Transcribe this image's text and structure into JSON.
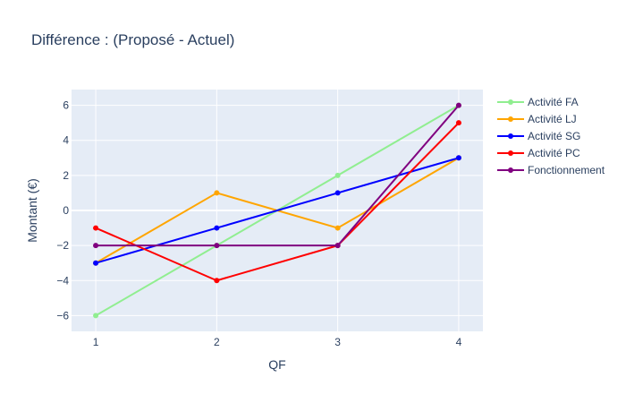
{
  "chart_data": {
    "type": "line",
    "title": "Différence : (Proposé - Actuel)",
    "xlabel": "QF",
    "ylabel": "Montant (€)",
    "x": [
      1,
      2,
      3,
      4
    ],
    "x_tick_labels": [
      "1",
      "2",
      "3",
      "4"
    ],
    "xlim": [
      0.8,
      4.2
    ],
    "ylim": [
      -6.9,
      6.9
    ],
    "y_ticks": [
      -6,
      -4,
      -2,
      0,
      2,
      4,
      6
    ],
    "y_tick_labels": [
      "−6",
      "−4",
      "−2",
      "0",
      "2",
      "4",
      "6"
    ],
    "grid": true,
    "plot_background": "#e5ecf6",
    "legend_position": "right",
    "series": [
      {
        "name": "Activité FA",
        "color": "#90ee90",
        "values": [
          -6,
          -2,
          2,
          6
        ]
      },
      {
        "name": "Activité LJ",
        "color": "#ffa500",
        "values": [
          -3,
          1,
          -1,
          3
        ]
      },
      {
        "name": "Activité SG",
        "color": "#0000ff",
        "values": [
          -3,
          -1,
          1,
          3
        ]
      },
      {
        "name": "Activité PC",
        "color": "#ff0000",
        "values": [
          -1,
          -4,
          -2,
          5
        ]
      },
      {
        "name": "Fonctionnement",
        "color": "#800080",
        "values": [
          -2,
          -2,
          -2,
          6
        ]
      }
    ]
  }
}
